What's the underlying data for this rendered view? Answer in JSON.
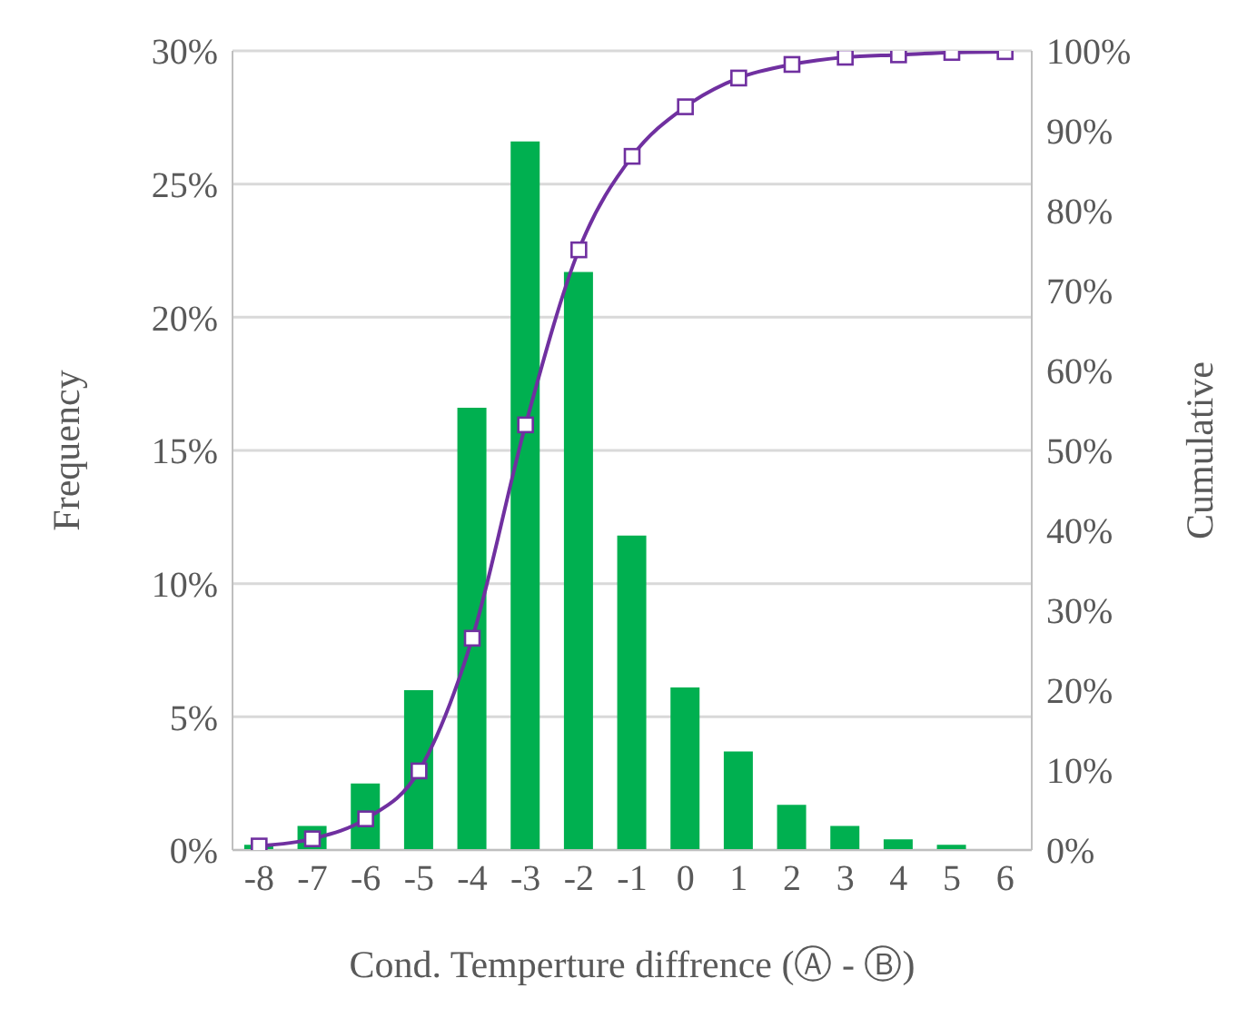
{
  "chart_data": {
    "type": "bar",
    "xlabel": "Cond. Temperture diffrence (Ⓐ - Ⓑ)",
    "ylabel": "Frequency",
    "y2label": "Cumulative",
    "categories": [
      "-8",
      "-7",
      "-6",
      "-5",
      "-4",
      "-3",
      "-2",
      "-1",
      "0",
      "1",
      "2",
      "3",
      "4",
      "5",
      "6"
    ],
    "series": [
      {
        "color": "#00b050",
        "values": [
          0.2,
          0.9,
          2.5,
          6.0,
          16.6,
          26.6,
          21.7,
          11.8,
          6.1,
          3.7,
          1.7,
          0.9,
          0.4,
          0.2,
          0
        ]
      },
      {
        "type": "line",
        "axis": "y2",
        "color": "#7030a0",
        "marker": "square",
        "values": [
          0.5,
          1.4,
          3.9,
          9.9,
          26.5,
          53.2,
          75.1,
          86.8,
          93.0,
          96.6,
          98.3,
          99.2,
          99.5,
          99.8,
          99.9
        ]
      }
    ],
    "ylim": [
      0,
      30
    ],
    "yticks": [
      {
        "value": 0,
        "label": "0%"
      },
      {
        "value": 5,
        "label": "5%"
      },
      {
        "value": 10,
        "label": "10%"
      },
      {
        "value": 15,
        "label": "15%"
      },
      {
        "value": 20,
        "label": "20%"
      },
      {
        "value": 25,
        "label": "25%"
      },
      {
        "value": 30,
        "label": "30%"
      }
    ],
    "y2lim": [
      0,
      100
    ],
    "y2ticks": [
      {
        "value": 0,
        "label": "0%"
      },
      {
        "value": 10,
        "label": "10%"
      },
      {
        "value": 20,
        "label": "20%"
      },
      {
        "value": 30,
        "label": "30%"
      },
      {
        "value": 40,
        "label": "40%"
      },
      {
        "value": 50,
        "label": "50%"
      },
      {
        "value": 60,
        "label": "60%"
      },
      {
        "value": 70,
        "label": "70%"
      },
      {
        "value": 80,
        "label": "80%"
      },
      {
        "value": 90,
        "label": "90%"
      },
      {
        "value": 100,
        "label": "100%"
      }
    ],
    "grid": "y",
    "legend": false
  }
}
